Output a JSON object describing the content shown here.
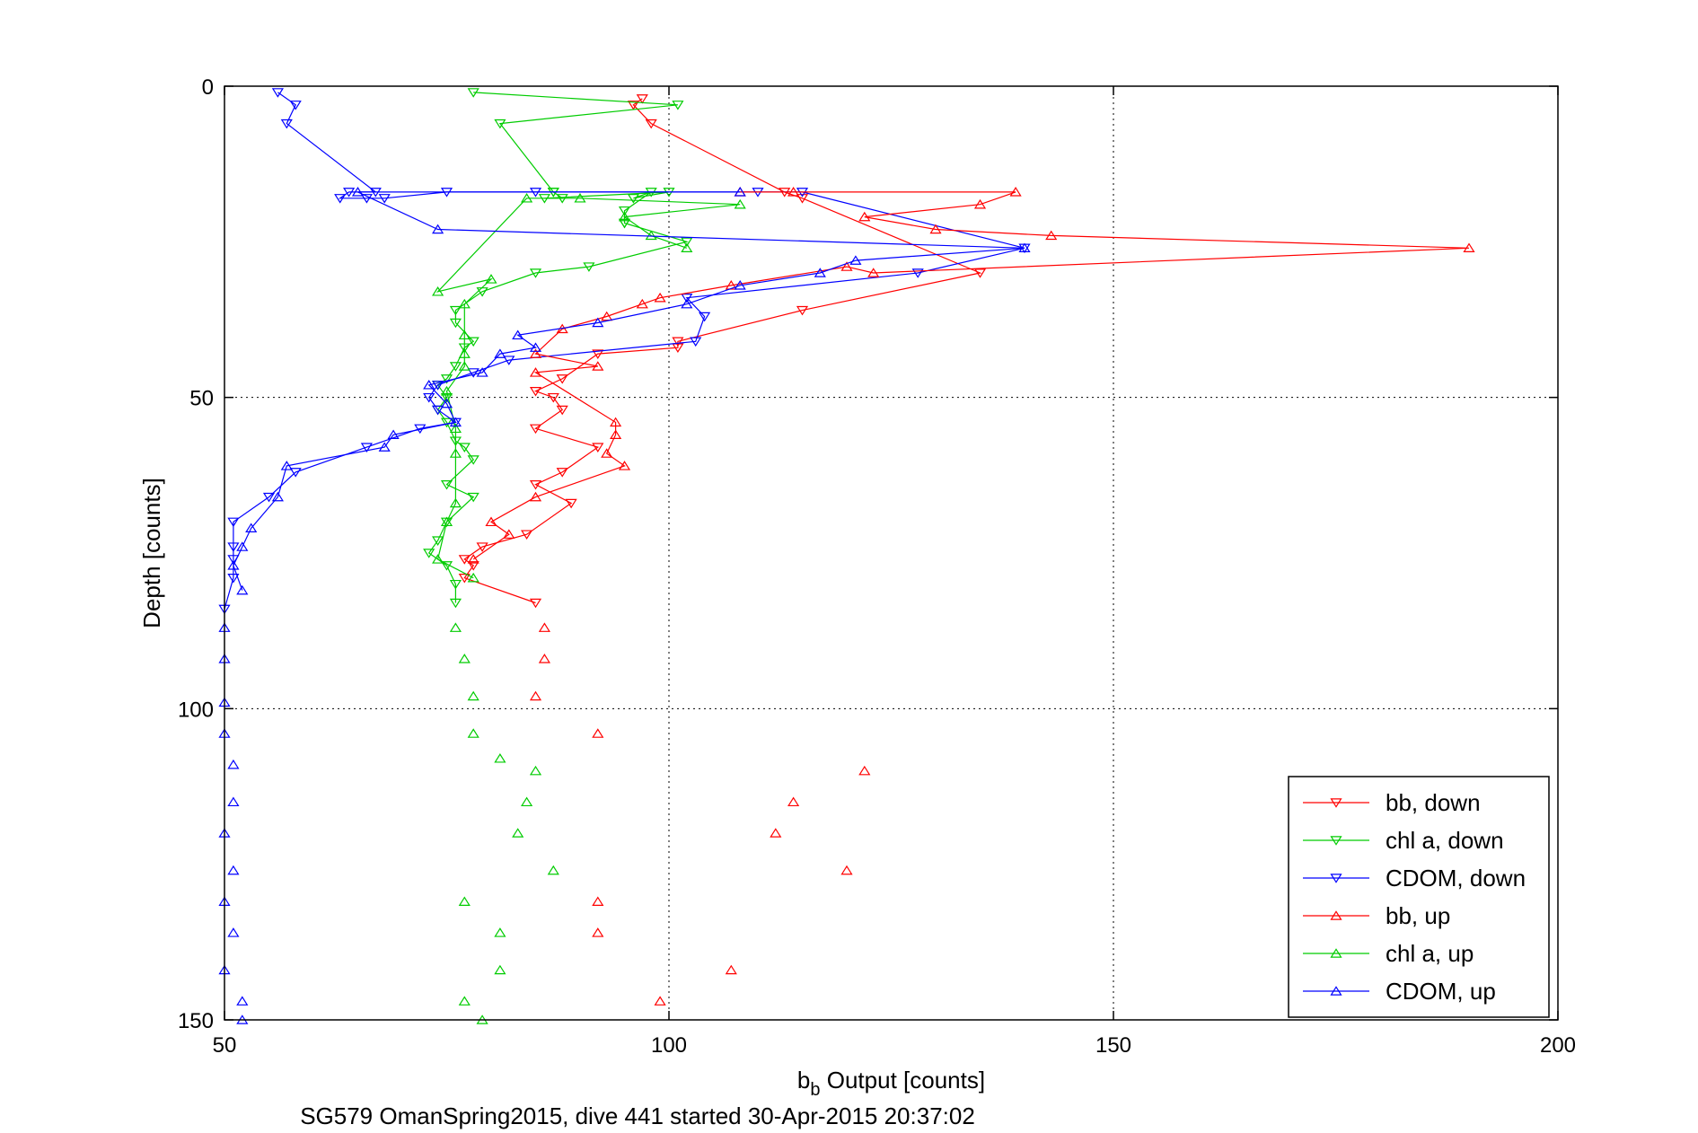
{
  "chart_data": {
    "type": "scatter",
    "xlabel": {
      "main": "b",
      "sub": "b",
      "rest": " Output [counts]"
    },
    "ylabel": "Depth [counts]",
    "caption": "SG579 OmanSpring2015, dive 441 started 30-Apr-2015 20:37:02",
    "xlim": [
      50,
      200
    ],
    "ylim": [
      0,
      150
    ],
    "y_reversed": true,
    "xticks": [
      50,
      100,
      150,
      200
    ],
    "yticks": [
      0,
      50,
      100,
      150
    ],
    "grid": true,
    "legend_position": "bottom-right",
    "series": [
      {
        "name": "bb, down",
        "color": "#ff0000",
        "marker": "down",
        "points": [
          [
            97,
            2
          ],
          [
            96,
            3
          ],
          [
            98,
            6
          ],
          [
            113,
            17
          ],
          [
            115,
            18
          ],
          [
            135,
            30
          ],
          [
            115,
            36
          ],
          [
            101,
            41
          ],
          [
            101,
            42
          ],
          [
            92,
            43
          ],
          [
            88,
            47
          ],
          [
            85,
            49
          ],
          [
            87,
            50
          ],
          [
            88,
            52
          ],
          [
            85,
            55
          ],
          [
            92,
            58
          ],
          [
            88,
            62
          ],
          [
            85,
            64
          ],
          [
            89,
            67
          ],
          [
            84,
            72
          ],
          [
            79,
            74
          ],
          [
            77,
            76
          ],
          [
            78,
            77
          ],
          [
            77,
            79
          ],
          [
            85,
            83
          ]
        ]
      },
      {
        "name": "chl a, down",
        "color": "#00cc00",
        "marker": "down",
        "points": [
          [
            78,
            1
          ],
          [
            101,
            3
          ],
          [
            81,
            6
          ],
          [
            87,
            17
          ],
          [
            87,
            17
          ],
          [
            88,
            18
          ],
          [
            86,
            18
          ],
          [
            100,
            17
          ],
          [
            96,
            18
          ],
          [
            98,
            17
          ],
          [
            95,
            20
          ],
          [
            95,
            22
          ],
          [
            95,
            22
          ],
          [
            102,
            25
          ],
          [
            91,
            29
          ],
          [
            85,
            30
          ],
          [
            79,
            33
          ],
          [
            76,
            36
          ],
          [
            76,
            38
          ],
          [
            78,
            41
          ],
          [
            77,
            42
          ],
          [
            76,
            45
          ],
          [
            75,
            47
          ],
          [
            74,
            48
          ],
          [
            75,
            50
          ],
          [
            74,
            52
          ],
          [
            75,
            54
          ],
          [
            76,
            57
          ],
          [
            77,
            58
          ],
          [
            78,
            60
          ],
          [
            75,
            64
          ],
          [
            78,
            66
          ],
          [
            75,
            70
          ],
          [
            74,
            73
          ],
          [
            73,
            75
          ],
          [
            75,
            77
          ],
          [
            76,
            80
          ],
          [
            76,
            83
          ]
        ]
      },
      {
        "name": "CDOM, down",
        "color": "#0000ff",
        "marker": "down",
        "points": [
          [
            56,
            1
          ],
          [
            58,
            3
          ],
          [
            57,
            6
          ],
          [
            67,
            17
          ],
          [
            64,
            17
          ],
          [
            63,
            18
          ],
          [
            66,
            18
          ],
          [
            68,
            18
          ],
          [
            75,
            17
          ],
          [
            85,
            17
          ],
          [
            110,
            17
          ],
          [
            115,
            17
          ],
          [
            140,
            26
          ],
          [
            128,
            30
          ],
          [
            102,
            34
          ],
          [
            104,
            37
          ],
          [
            103,
            41
          ],
          [
            82,
            44
          ],
          [
            78,
            46
          ],
          [
            74,
            48
          ],
          [
            73,
            50
          ],
          [
            74,
            52
          ],
          [
            76,
            54
          ],
          [
            72,
            55
          ],
          [
            66,
            58
          ],
          [
            58,
            62
          ],
          [
            55,
            66
          ],
          [
            51,
            70
          ],
          [
            51,
            74
          ],
          [
            51,
            76
          ],
          [
            51,
            79
          ],
          [
            50,
            84
          ]
        ]
      },
      {
        "name": "bb, up",
        "color": "#ff0000",
        "marker": "up",
        "points": [
          [
            114,
            17
          ],
          [
            108,
            17
          ],
          [
            139,
            17
          ],
          [
            135,
            19
          ],
          [
            122,
            21
          ],
          [
            130,
            23
          ],
          [
            143,
            24
          ],
          [
            190,
            26
          ],
          [
            123,
            30
          ],
          [
            120,
            29
          ],
          [
            107,
            32
          ],
          [
            99,
            34
          ],
          [
            97,
            35
          ],
          [
            93,
            37
          ],
          [
            88,
            39
          ],
          [
            85,
            43
          ],
          [
            92,
            45
          ],
          [
            85,
            46
          ],
          [
            94,
            54
          ],
          [
            94,
            56
          ],
          [
            93,
            59
          ],
          [
            95,
            61
          ],
          [
            85,
            66
          ],
          [
            80,
            70
          ],
          [
            82,
            72
          ],
          [
            78,
            76
          ],
          [
            86,
            87
          ],
          [
            86,
            92
          ],
          [
            85,
            98
          ],
          [
            92,
            104
          ],
          [
            122,
            110
          ],
          [
            114,
            115
          ],
          [
            112,
            120
          ],
          [
            120,
            126
          ],
          [
            92,
            131
          ],
          [
            92,
            136
          ],
          [
            107,
            142
          ],
          [
            99,
            147
          ]
        ]
      },
      {
        "name": "chl a, up",
        "color": "#00cc00",
        "marker": "up",
        "points": [
          [
            102,
            26
          ],
          [
            98,
            24
          ],
          [
            95,
            21
          ],
          [
            108,
            19
          ],
          [
            90,
            18
          ],
          [
            84,
            18
          ],
          [
            74,
            33
          ],
          [
            80,
            31
          ],
          [
            77,
            35
          ],
          [
            77,
            40
          ],
          [
            77,
            43
          ],
          [
            77,
            45
          ],
          [
            75,
            49
          ],
          [
            76,
            55
          ],
          [
            76,
            59
          ],
          [
            76,
            67
          ],
          [
            75,
            70
          ],
          [
            74,
            76
          ],
          [
            78,
            79
          ],
          [
            76,
            87
          ],
          [
            77,
            92
          ],
          [
            78,
            98
          ],
          [
            78,
            104
          ],
          [
            81,
            108
          ],
          [
            85,
            110
          ],
          [
            84,
            115
          ],
          [
            83,
            120
          ],
          [
            87,
            126
          ],
          [
            77,
            131
          ],
          [
            81,
            136
          ],
          [
            81,
            142
          ],
          [
            77,
            147
          ],
          [
            79,
            150
          ]
        ]
      },
      {
        "name": "CDOM, up",
        "color": "#0000ff",
        "marker": "up",
        "points": [
          [
            108,
            17
          ],
          [
            65,
            17
          ],
          [
            74,
            23
          ],
          [
            140,
            26
          ],
          [
            121,
            28
          ],
          [
            117,
            30
          ],
          [
            108,
            32
          ],
          [
            102,
            35
          ],
          [
            92,
            38
          ],
          [
            83,
            40
          ],
          [
            85,
            42
          ],
          [
            81,
            43
          ],
          [
            79,
            46
          ],
          [
            73,
            48
          ],
          [
            75,
            51
          ],
          [
            76,
            54
          ],
          [
            69,
            56
          ],
          [
            68,
            58
          ],
          [
            57,
            61
          ],
          [
            56,
            66
          ],
          [
            53,
            71
          ],
          [
            52,
            74
          ],
          [
            51,
            77
          ],
          [
            52,
            81
          ],
          [
            50,
            87
          ],
          [
            50,
            92
          ],
          [
            50,
            99
          ],
          [
            50,
            104
          ],
          [
            51,
            109
          ],
          [
            51,
            115
          ],
          [
            50,
            120
          ],
          [
            51,
            126
          ],
          [
            50,
            131
          ],
          [
            51,
            136
          ],
          [
            50,
            142
          ],
          [
            52,
            147
          ],
          [
            52,
            150
          ]
        ]
      }
    ]
  }
}
